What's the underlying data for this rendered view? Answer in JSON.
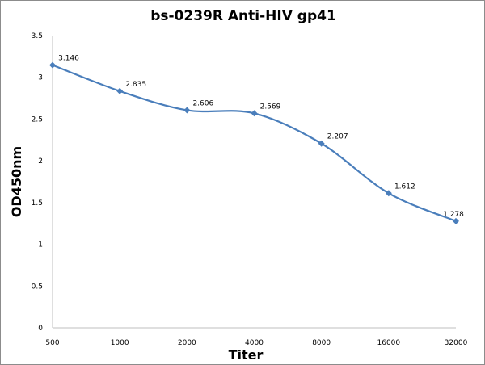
{
  "chart_data": {
    "type": "line",
    "title": "bs-0239R Anti-HIV gp41",
    "xlabel": "Titer",
    "ylabel": "OD450nm",
    "categories": [
      "500",
      "1000",
      "2000",
      "4000",
      "8000",
      "16000",
      "32000"
    ],
    "series": [
      {
        "values": [
          3.146,
          2.835,
          2.606,
          2.569,
          2.207,
          1.612,
          1.278
        ]
      }
    ],
    "data_labels": [
      "3.146",
      "2.835",
      "2.606",
      "2.569",
      "2.207",
      "1.612",
      "1.278"
    ],
    "ylim": [
      0,
      3.5
    ],
    "yticks": [
      "0",
      "0.5",
      "1",
      "1.5",
      "2",
      "2.5",
      "3",
      "3.5"
    ],
    "grid": false,
    "legend": "none",
    "smooth": true,
    "line_color": "#4a7ebb"
  }
}
